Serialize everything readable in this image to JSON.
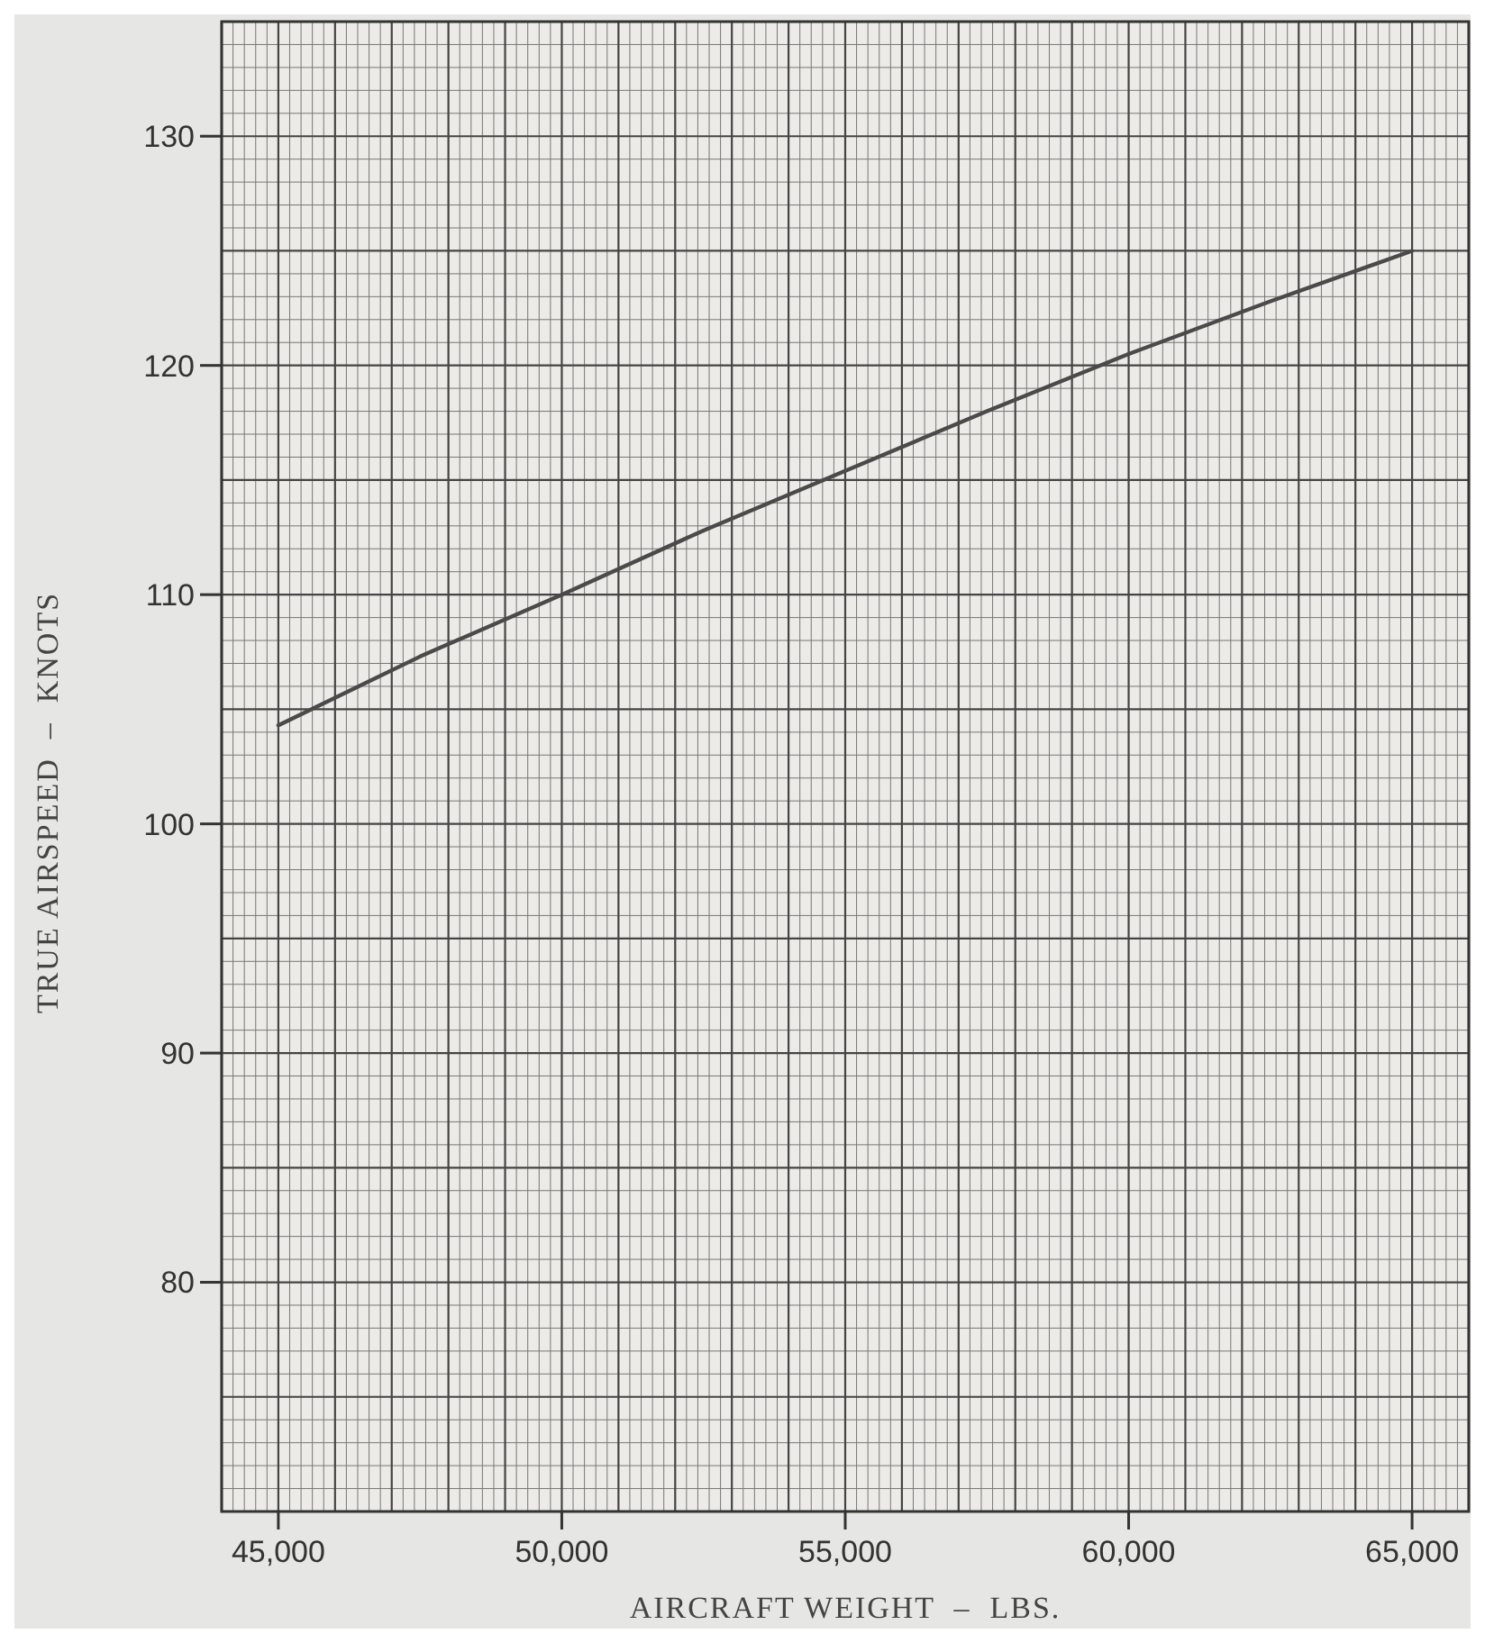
{
  "chart_data": {
    "type": "line",
    "xlabel": "AIRCRAFT WEIGHT  –  LBS.",
    "ylabel": "TRUE AIRSPEED  –  KNOTS",
    "x": [
      45000,
      47500,
      50000,
      52500,
      55000,
      57500,
      60000,
      62500,
      65000
    ],
    "series": [
      {
        "color": "#4a4a4a",
        "values": [
          104.3,
          107.3,
          110.0,
          112.8,
          115.4,
          118.0,
          120.5,
          122.8,
          125.0
        ]
      }
    ],
    "xlim": [
      44000,
      66000
    ],
    "xticks": [
      {
        "value": 44000,
        "label": null
      },
      {
        "value": 45000,
        "label": "45,000"
      },
      {
        "value": 46000,
        "label": null
      },
      {
        "value": 47000,
        "label": null
      },
      {
        "value": 48000,
        "label": null
      },
      {
        "value": 49000,
        "label": null
      },
      {
        "value": 50000,
        "label": "50,000"
      },
      {
        "value": 51000,
        "label": null
      },
      {
        "value": 52000,
        "label": null
      },
      {
        "value": 53000,
        "label": null
      },
      {
        "value": 54000,
        "label": null
      },
      {
        "value": 55000,
        "label": "55,000"
      },
      {
        "value": 56000,
        "label": null
      },
      {
        "value": 57000,
        "label": null
      },
      {
        "value": 58000,
        "label": null
      },
      {
        "value": 59000,
        "label": null
      },
      {
        "value": 60000,
        "label": "60,000"
      },
      {
        "value": 61000,
        "label": null
      },
      {
        "value": 62000,
        "label": null
      },
      {
        "value": 63000,
        "label": null
      },
      {
        "value": 64000,
        "label": null
      },
      {
        "value": 65000,
        "label": "65,000"
      },
      {
        "value": 66000,
        "label": null
      }
    ],
    "ylim": [
      70,
      135
    ],
    "yticks": [
      {
        "value": 70,
        "label": null
      },
      {
        "value": 75,
        "label": null
      },
      80,
      {
        "value": 85,
        "label": null
      },
      90,
      {
        "value": 95,
        "label": null
      },
      100,
      {
        "value": 105,
        "label": null
      },
      110,
      {
        "value": 115,
        "label": null
      },
      120,
      {
        "value": 125,
        "label": null
      },
      130,
      {
        "value": 135,
        "label": null
      }
    ],
    "grid": true,
    "marker": "none",
    "line_style": "solid"
  }
}
